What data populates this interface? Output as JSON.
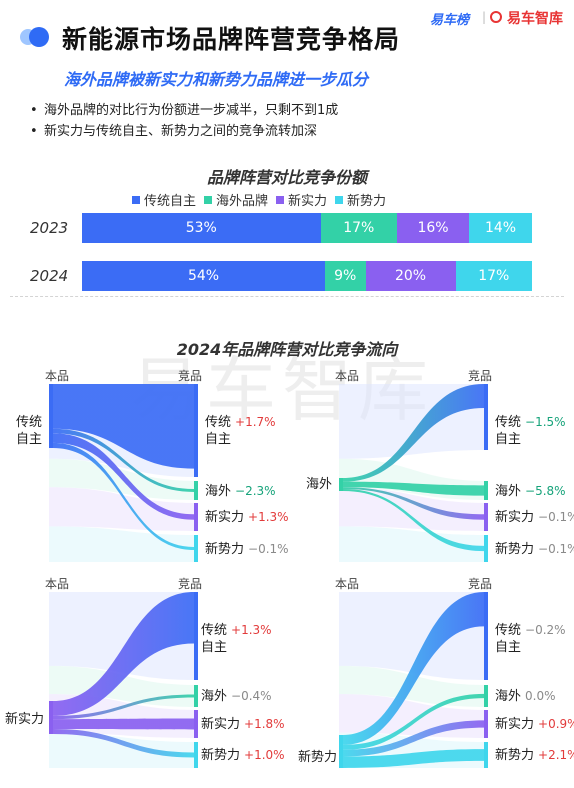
{
  "header": {
    "title": "新能源市场品牌阵营竞争格局",
    "subtitle": "海外品牌被新实力和新势力品牌进一步瓜分",
    "logo_left": "易车榜",
    "logo_right": "易车智库"
  },
  "bullets": [
    "海外品牌的对比行为份额进一步减半，只剩不到1成",
    "新实力与传统自主、新势力之间的竞争流转加深"
  ],
  "watermark": "易车智库",
  "colors": {
    "传统自主": "#3b6cf5",
    "海外品牌": "#33d1a7",
    "新实力": "#8a60f0",
    "新势力": "#3fd6ec"
  },
  "chart_data": [
    {
      "type": "bar",
      "orientation": "horizontal-stacked-100",
      "title": "品牌阵营对比竞争份额",
      "categories": [
        "2023",
        "2024"
      ],
      "series": [
        {
          "name": "传统自主",
          "values": [
            53,
            54
          ],
          "labels": [
            "53%",
            "54%"
          ]
        },
        {
          "name": "海外品牌",
          "values": [
            17,
            9
          ],
          "labels": [
            "17%",
            "9%"
          ]
        },
        {
          "name": "新实力",
          "values": [
            16,
            20
          ],
          "labels": [
            "16%",
            "20%"
          ]
        },
        {
          "name": "新势力",
          "values": [
            14,
            17
          ],
          "labels": [
            "14%",
            "17%"
          ]
        }
      ],
      "legend_position": "top"
    },
    {
      "type": "sankey",
      "title": "2024年品牌阵营对比竞争流向",
      "axis_labels": {
        "source": "本品",
        "target": "竞品"
      },
      "panels": [
        {
          "source": "传统自主",
          "targets": [
            {
              "name": "传统自主",
              "delta": "+1.7%"
            },
            {
              "name": "海外",
              "delta": "−2.3%"
            },
            {
              "name": "新实力",
              "delta": "+1.3%"
            },
            {
              "name": "新势力",
              "delta": "−0.1%"
            }
          ]
        },
        {
          "source": "海外",
          "targets": [
            {
              "name": "传统自主",
              "delta": "−1.5%"
            },
            {
              "name": "海外",
              "delta": "−5.8%"
            },
            {
              "name": "新实力",
              "delta": "−0.1%"
            },
            {
              "name": "新势力",
              "delta": "−0.1%"
            }
          ]
        },
        {
          "source": "新实力",
          "targets": [
            {
              "name": "传统自主",
              "delta": "+1.3%"
            },
            {
              "name": "海外",
              "delta": "−0.4%"
            },
            {
              "name": "新实力",
              "delta": "+1.8%"
            },
            {
              "name": "新势力",
              "delta": "+1.0%"
            }
          ]
        },
        {
          "source": "新势力",
          "targets": [
            {
              "name": "传统自主",
              "delta": "−0.2%"
            },
            {
              "name": "海外",
              "delta": "0.0%"
            },
            {
              "name": "新实力",
              "delta": "+0.9%"
            },
            {
              "name": "新势力",
              "delta": "+2.1%"
            }
          ]
        }
      ]
    }
  ]
}
